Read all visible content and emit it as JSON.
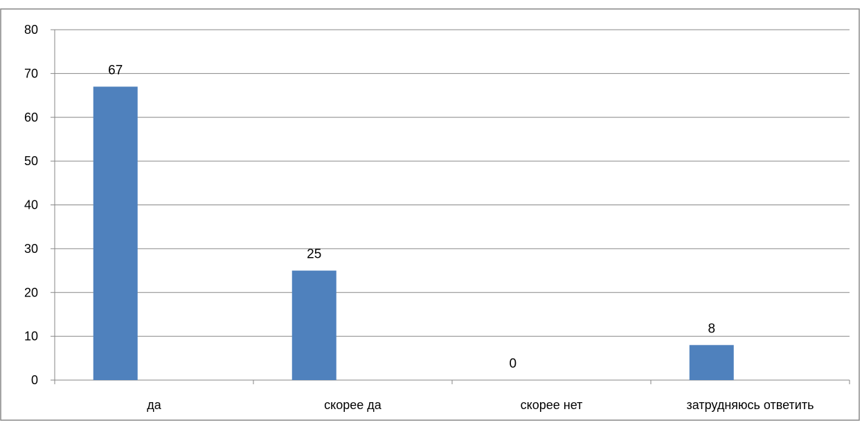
{
  "chart_data": {
    "type": "bar",
    "categories": [
      "да",
      "скорее да",
      "скорее нет",
      "затрудняюсь ответить"
    ],
    "values": [
      67,
      25,
      0,
      8
    ],
    "data_labels": [
      "67",
      "25",
      "0",
      "8"
    ],
    "title": "",
    "xlabel": "",
    "ylabel": "",
    "ylim": [
      0,
      80
    ],
    "yticks": [
      0,
      10,
      20,
      30,
      40,
      50,
      60,
      70,
      80
    ],
    "grid": true,
    "legend": "none",
    "colors": {
      "bar": "#4f81bd",
      "gridline": "#868686",
      "axis": "#868686",
      "border": "#868686"
    }
  }
}
